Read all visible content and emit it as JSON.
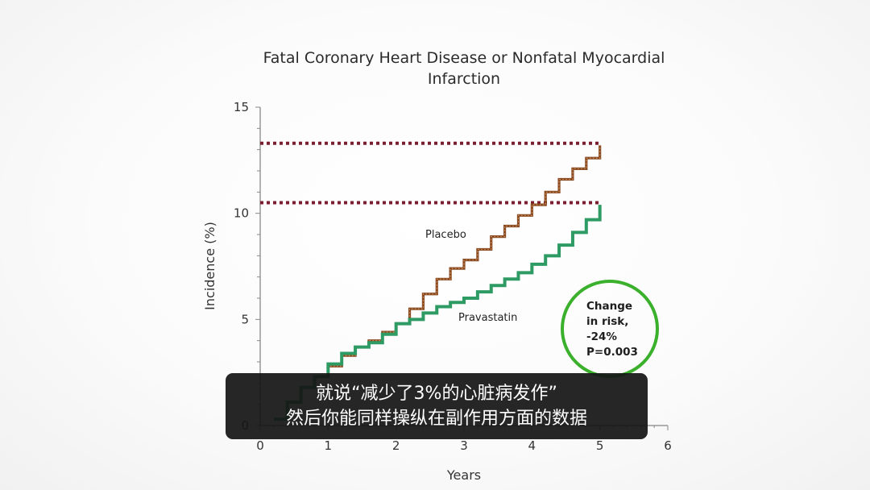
{
  "chart_data": {
    "type": "line",
    "title": "Fatal Coronary Heart Disease or Nonfatal Myocardial Infarction",
    "title_lines": [
      "Fatal Coronary Heart Disease or Nonfatal Myocardial",
      "Infarction"
    ],
    "xlabel": "Years",
    "ylabel": "Incidence (%)",
    "xlim": [
      0,
      6
    ],
    "ylim": [
      0,
      15
    ],
    "xticks": [
      0,
      1,
      2,
      3,
      4,
      5,
      6
    ],
    "yticks": [
      0,
      5,
      10,
      15
    ],
    "grid": false,
    "series": [
      {
        "name": "Placebo",
        "color": "#8a4a22",
        "x": [
          0.2,
          0.4,
          0.6,
          0.8,
          1.0,
          1.2,
          1.4,
          1.6,
          1.8,
          2.0,
          2.2,
          2.4,
          2.6,
          2.8,
          3.0,
          3.2,
          3.4,
          3.6,
          3.8,
          4.0,
          4.2,
          4.4,
          4.6,
          4.8,
          5.0
        ],
        "y": [
          0.3,
          1.1,
          1.8,
          2.3,
          2.8,
          3.3,
          3.7,
          4.0,
          4.4,
          4.8,
          5.5,
          6.2,
          6.9,
          7.4,
          7.8,
          8.3,
          8.9,
          9.4,
          9.9,
          10.4,
          11.0,
          11.6,
          12.1,
          12.6,
          13.2
        ]
      },
      {
        "name": "Pravastatin",
        "color": "#2e9a64",
        "x": [
          0.2,
          0.4,
          0.6,
          0.8,
          1.0,
          1.2,
          1.4,
          1.6,
          1.8,
          2.0,
          2.2,
          2.4,
          2.6,
          2.8,
          3.0,
          3.2,
          3.4,
          3.6,
          3.8,
          4.0,
          4.2,
          4.4,
          4.6,
          4.8,
          5.0
        ],
        "y": [
          0.3,
          1.1,
          1.8,
          2.3,
          2.9,
          3.4,
          3.7,
          3.9,
          4.3,
          4.8,
          5.0,
          5.3,
          5.6,
          5.8,
          6.0,
          6.3,
          6.6,
          6.9,
          7.2,
          7.6,
          8.0,
          8.5,
          9.1,
          9.7,
          10.4
        ]
      }
    ],
    "reference_lines": [
      {
        "y": 13.3,
        "x_end": 5.0,
        "color": "#7a1d2e",
        "style": "dotted"
      },
      {
        "y": 10.5,
        "x_end": 5.0,
        "color": "#7a1d2e",
        "style": "dotted"
      }
    ],
    "annotation": {
      "lines": [
        "Change",
        "in risk,",
        "-24%",
        "P=0.003"
      ],
      "circle_color": "#3bb02c"
    }
  },
  "subtitle": {
    "line1": "就说“减少了3%的心脏病发作”",
    "line2": "然后你能同样操纵在副作用方面的数据"
  }
}
